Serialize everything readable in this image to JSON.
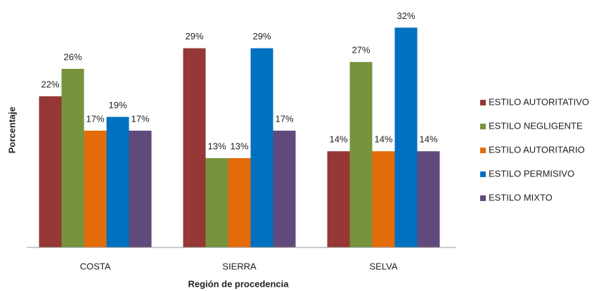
{
  "chart_data": {
    "type": "bar",
    "x_label": "Región de procedencia",
    "y_label": "Porcentaje",
    "categories": [
      "COSTA",
      "SIERRA",
      "SELVA"
    ],
    "series": [
      {
        "name": "ESTILO AUTORITATIVO",
        "color": "#953735",
        "values": [
          22,
          29,
          14
        ],
        "value_labels": [
          "22%",
          "29%",
          "14%"
        ]
      },
      {
        "name": "ESTILO NEGLIGENTE",
        "color": "#77933c",
        "values": [
          26,
          13,
          27
        ],
        "value_labels": [
          "26%",
          "13%",
          "27%"
        ]
      },
      {
        "name": "ESTILO AUTORITARIO",
        "color": "#e46c0a",
        "values": [
          17,
          13,
          14
        ],
        "value_labels": [
          "17%",
          "13%",
          "14%"
        ]
      },
      {
        "name": "ESTILO PERMISIVO",
        "color": "#0070c0",
        "values": [
          19,
          29,
          32
        ],
        "value_labels": [
          "19%",
          "29%",
          "32%"
        ]
      },
      {
        "name": "ESTILO MIXTO",
        "color": "#604a7b",
        "values": [
          17,
          17,
          14
        ],
        "value_labels": [
          "17%",
          "17%",
          "14%"
        ]
      }
    ],
    "ylim": [
      0,
      35
    ],
    "legend": "right"
  }
}
